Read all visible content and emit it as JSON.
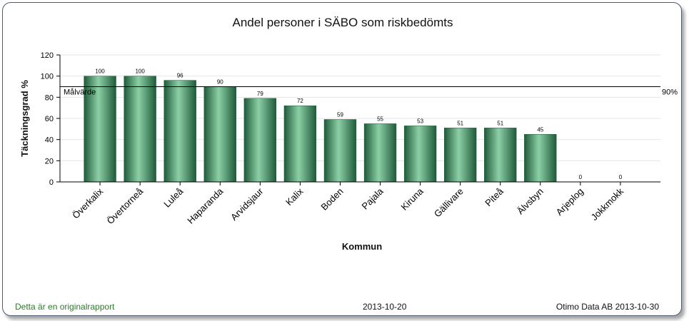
{
  "chart_data": {
    "type": "bar",
    "title": "Andel personer i SÄBO som riskbedömts",
    "xlabel": "Kommun",
    "ylabel": "Täckningsgrad %",
    "ylim": [
      0,
      120
    ],
    "yticks": [
      0,
      20,
      40,
      60,
      80,
      100,
      120
    ],
    "categories": [
      "Överkalix",
      "Övertorneå",
      "Luleå",
      "Haparanda",
      "Arvidsjaur",
      "Kalix",
      "Boden",
      "Pajala",
      "Kiruna",
      "Gällivare",
      "Piteå",
      "Älvsbyn",
      "Arjeplog",
      "Jokkmokk"
    ],
    "values": [
      100,
      100,
      96,
      90,
      79,
      72,
      59,
      55,
      53,
      51,
      51,
      45,
      0,
      0
    ],
    "reference_line": {
      "value": 90,
      "label": "Målvärde",
      "value_label": "90%"
    },
    "bar_color": "#3e8a61",
    "grid": "horizontal"
  },
  "footer": {
    "left": "Detta är en originalrapport",
    "center": "2013-10-20",
    "right": "Otimo Data AB 2013-10-30"
  }
}
